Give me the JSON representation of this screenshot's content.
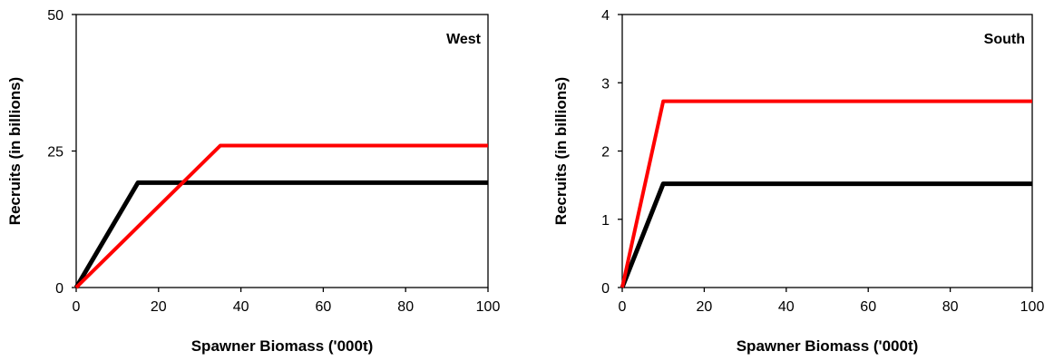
{
  "chart_data": [
    {
      "type": "line",
      "title": "",
      "panel_label": "West",
      "xlabel": "Spawner Biomass ('000t)",
      "ylabel": "Recruits (in billions)",
      "xlim": [
        0,
        100
      ],
      "ylim": [
        0,
        50
      ],
      "xticks": [
        0,
        20,
        40,
        60,
        80,
        100
      ],
      "yticks": [
        0,
        25,
        50
      ],
      "grid": false,
      "legend": "none",
      "series": [
        {
          "color": "#000000",
          "x": [
            0,
            15,
            100
          ],
          "y": [
            0,
            19.2,
            19.2
          ]
        },
        {
          "color": "#ff0000",
          "x": [
            0,
            35,
            100
          ],
          "y": [
            0,
            26,
            26
          ]
        }
      ]
    },
    {
      "type": "line",
      "title": "",
      "panel_label": "South",
      "xlabel": "Spawner Biomass ('000t)",
      "ylabel": "Recruits (in billions)",
      "xlim": [
        0,
        100
      ],
      "ylim": [
        0,
        4
      ],
      "xticks": [
        0,
        20,
        40,
        60,
        80,
        100
      ],
      "yticks": [
        0,
        1,
        2,
        3,
        4
      ],
      "grid": false,
      "legend": "none",
      "series": [
        {
          "color": "#000000",
          "x": [
            0,
            10,
            100
          ],
          "y": [
            0,
            1.52,
            1.52
          ]
        },
        {
          "color": "#ff0000",
          "x": [
            0,
            10,
            100
          ],
          "y": [
            0,
            2.73,
            2.73
          ]
        }
      ]
    }
  ]
}
